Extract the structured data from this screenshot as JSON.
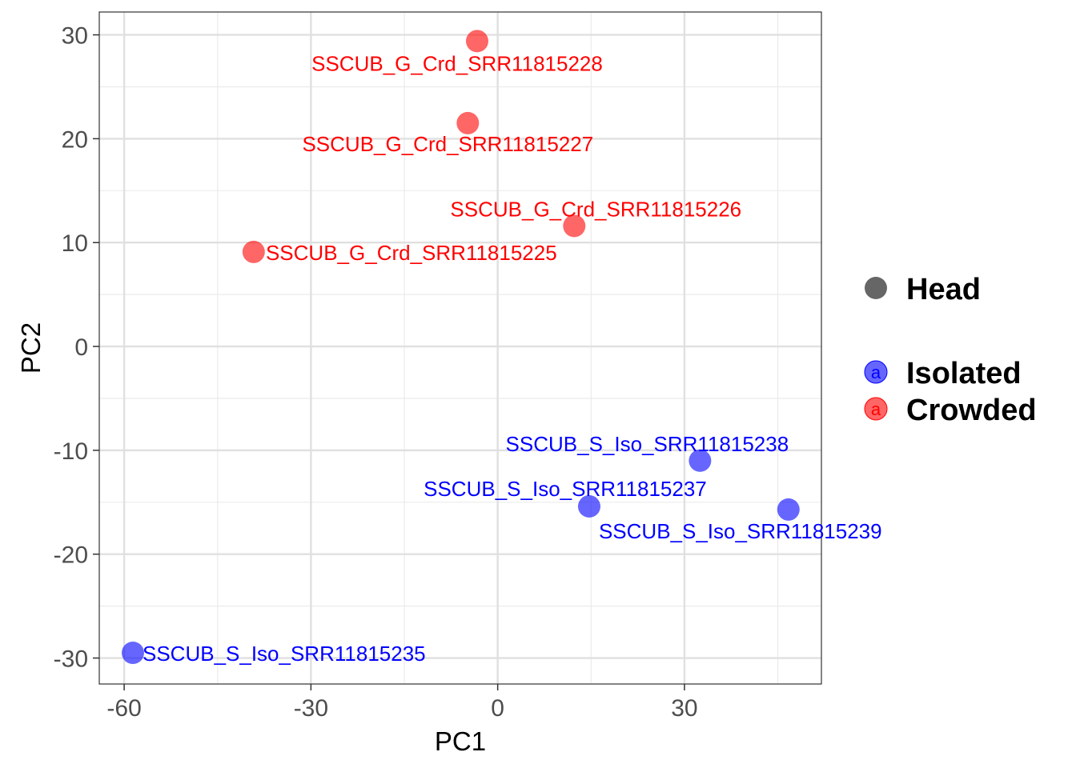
{
  "chart_data": {
    "type": "scatter",
    "title": "",
    "xlabel": "PC1",
    "ylabel": "PC2",
    "xlim": [
      -64,
      52
    ],
    "ylim": [
      -32.5,
      32.2
    ],
    "x_ticks": [
      -60,
      -30,
      0,
      30
    ],
    "y_ticks": [
      30,
      20,
      10,
      0,
      -10,
      -20,
      -30
    ],
    "grid": true,
    "legend_position": "right",
    "shape_legend": [
      {
        "label": "Head",
        "color": "#666666"
      }
    ],
    "series": [
      {
        "name": "Isolated",
        "color": "#0000ff",
        "points": [
          {
            "x": 32.5,
            "y": -11.0,
            "label": "SSCUB_S_Iso_SRR11815238"
          },
          {
            "x": 14.7,
            "y": -15.4,
            "label": "SSCUB_S_Iso_SRR11815237"
          },
          {
            "x": 46.7,
            "y": -15.7,
            "label": "SSCUB_S_Iso_SRR11815239"
          },
          {
            "x": -58.6,
            "y": -29.5,
            "label": "SSCUB_S_Iso_SRR11815235"
          }
        ]
      },
      {
        "name": "Crowded",
        "color": "#ff0000",
        "points": [
          {
            "x": -3.3,
            "y": 29.4,
            "label": "SSCUB_G_Crd_SRR11815228"
          },
          {
            "x": -4.8,
            "y": 21.5,
            "label": "SSCUB_G_Crd_SRR11815227"
          },
          {
            "x": 12.3,
            "y": 11.6,
            "label": "SSCUB_G_Crd_SRR11815226"
          },
          {
            "x": -39.2,
            "y": 9.1,
            "label": "SSCUB_G_Crd_SRR11815225"
          }
        ]
      }
    ]
  }
}
